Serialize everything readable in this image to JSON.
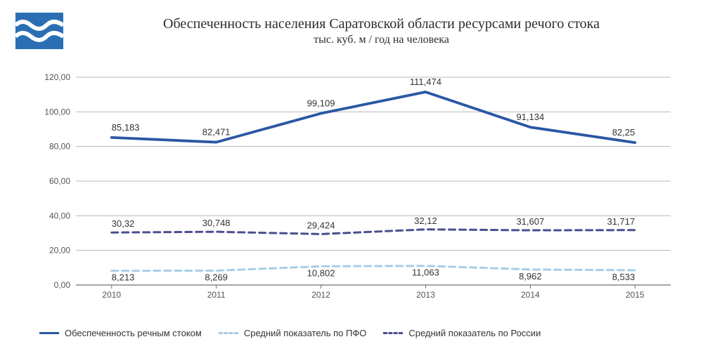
{
  "logo": {
    "bg": "#2a6fb3",
    "wave": "#ffffff"
  },
  "title": "Обеспеченность населения Саратовской области ресурсами речого стока",
  "subtitle": "тыс. куб. м / год на человека",
  "chart": {
    "type": "line",
    "categories": [
      "2010",
      "2011",
      "2012",
      "2013",
      "2014",
      "2015"
    ],
    "ylim": [
      0,
      120
    ],
    "ytick_step": 20,
    "ylabels": [
      "0,00",
      "20,00",
      "40,00",
      "60,00",
      "80,00",
      "100,00",
      "120,00"
    ],
    "background_color": "#ffffff",
    "grid_color": "#b8b8b8",
    "axis_color": "#6f6f6f",
    "tick_font_size": 12,
    "label_font_size": 12,
    "datalabel_font_size": 13,
    "line_width_main": 3.8,
    "line_width_other": 3.0,
    "dash_pattern": "9,6",
    "series": [
      {
        "key": "river",
        "label": "Обеспеченность речным стоком",
        "color": "#2a57a3",
        "dashed": false,
        "values": [
          85.183,
          82.471,
          99.109,
          111.474,
          91.134,
          82.25
        ],
        "datalabels": [
          "85,183",
          "82,471",
          "99,109",
          "111,474",
          "91,134",
          "82,25"
        ]
      },
      {
        "key": "pfo",
        "label": "Средний показатель по ПФО",
        "color": "#a6cde8",
        "dashed": true,
        "values": [
          8.213,
          8.269,
          10.802,
          11.063,
          8.962,
          8.533
        ],
        "datalabels": [
          "8,213",
          "8,269",
          "10,802",
          "11,063",
          "8,962",
          "8,533"
        ]
      },
      {
        "key": "russia",
        "label": "Средний показатель по России",
        "color": "#4a4e8f",
        "dashed": true,
        "values": [
          30.32,
          30.748,
          29.424,
          32.12,
          31.607,
          31.717
        ],
        "datalabels": [
          "30,32",
          "30,748",
          "29,424",
          "32,12",
          "31,607",
          "31,717"
        ]
      }
    ]
  },
  "legend_font_size": 13
}
